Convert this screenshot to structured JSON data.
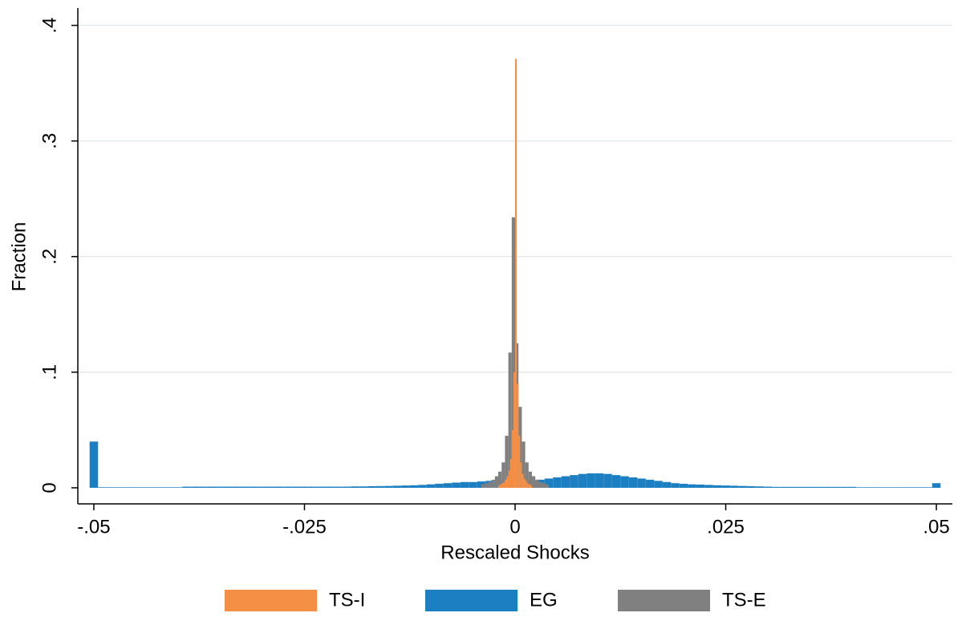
{
  "chart_data": {
    "type": "histogram",
    "xlabel": "Rescaled Shocks",
    "ylabel": "Fraction",
    "xlim": [
      -0.0519,
      0.0519
    ],
    "ylim": [
      -0.0139,
      0.415
    ],
    "xticks": [
      {
        "value": -0.05,
        "label": "-.05"
      },
      {
        "value": -0.025,
        "label": "-.025"
      },
      0,
      {
        "value": 0.025,
        "label": ".025"
      },
      {
        "value": 0.05,
        "label": ".05"
      }
    ],
    "yticks": [
      0,
      {
        "value": 0.1,
        "label": ".1"
      },
      {
        "value": 0.2,
        "label": ".2"
      },
      {
        "value": 0.3,
        "label": ".3"
      },
      {
        "value": 0.4,
        "label": ".4"
      }
    ],
    "grid": true,
    "legend": "bottom",
    "series": [
      {
        "name": "TS-I",
        "color": "#f58f45",
        "bins": [
          -0.002,
          -0.0018,
          -0.0016,
          -0.0014,
          -0.0012,
          -0.001,
          -0.0008,
          -0.0006,
          -0.0004,
          -0.0002,
          0,
          0.0002,
          0.0004,
          0.0006,
          0.0008,
          0.001,
          0.0012,
          0.0014,
          0.0016,
          0.0018,
          0.002
        ],
        "values": [
          0.002,
          0.003,
          0.004,
          0.005,
          0.007,
          0.01,
          0.015,
          0.025,
          0.05,
          0.1,
          0.371,
          0.09,
          0.045,
          0.022,
          0.012,
          0.008,
          0.006,
          0.004,
          0.003,
          0.002
        ]
      },
      {
        "name": "EG",
        "color": "#1b7fc2",
        "bins": [
          -0.0505,
          -0.0495,
          -0.0485,
          -0.0475,
          -0.0465,
          -0.0455,
          -0.0445,
          -0.0435,
          -0.0425,
          -0.0415,
          -0.0405,
          -0.0395,
          -0.0385,
          -0.0375,
          -0.0365,
          -0.0355,
          -0.0345,
          -0.0335,
          -0.0325,
          -0.0315,
          -0.0305,
          -0.0295,
          -0.0285,
          -0.0275,
          -0.0265,
          -0.0255,
          -0.0245,
          -0.0235,
          -0.0225,
          -0.0215,
          -0.0205,
          -0.0195,
          -0.0185,
          -0.0175,
          -0.0165,
          -0.0155,
          -0.0145,
          -0.0135,
          -0.0125,
          -0.0115,
          -0.0105,
          -0.0095,
          -0.0085,
          -0.0075,
          -0.0065,
          -0.0055,
          -0.0045,
          -0.0035,
          -0.0025,
          -0.0015,
          -0.0005,
          0.0005,
          0.0015,
          0.0025,
          0.0035,
          0.0045,
          0.0055,
          0.0065,
          0.0075,
          0.0085,
          0.0095,
          0.0105,
          0.0115,
          0.0125,
          0.0135,
          0.0145,
          0.0155,
          0.0165,
          0.0175,
          0.0185,
          0.0195,
          0.0205,
          0.0215,
          0.0225,
          0.0235,
          0.0245,
          0.0255,
          0.0265,
          0.0275,
          0.0285,
          0.0295,
          0.0305,
          0.0315,
          0.0325,
          0.0335,
          0.0345,
          0.0355,
          0.0365,
          0.0375,
          0.0385,
          0.0395,
          0.0405,
          0.0415,
          0.0425,
          0.0435,
          0.0445,
          0.0455,
          0.0465,
          0.0475,
          0.0485,
          0.0495,
          0.0505
        ],
        "values": [
          0.04,
          0.0005,
          0.0005,
          0.0005,
          0.0005,
          0.0005,
          0.0005,
          0.0005,
          0.0005,
          0.0005,
          0.0005,
          0.001,
          0.001,
          0.001,
          0.001,
          0.001,
          0.001,
          0.001,
          0.001,
          0.001,
          0.001,
          0.001,
          0.001,
          0.001,
          0.001,
          0.001,
          0.001,
          0.001,
          0.001,
          0.001,
          0.001,
          0.0012,
          0.0012,
          0.0014,
          0.0015,
          0.0016,
          0.0018,
          0.002,
          0.0022,
          0.0025,
          0.003,
          0.0035,
          0.004,
          0.0045,
          0.005,
          0.005,
          0.0055,
          0.006,
          0.006,
          0.005,
          0.004,
          0.005,
          0.006,
          0.007,
          0.008,
          0.009,
          0.01,
          0.011,
          0.012,
          0.0125,
          0.0125,
          0.012,
          0.011,
          0.01,
          0.009,
          0.008,
          0.007,
          0.006,
          0.005,
          0.004,
          0.0035,
          0.003,
          0.0028,
          0.0025,
          0.0022,
          0.002,
          0.0018,
          0.0016,
          0.0014,
          0.0012,
          0.001,
          0.0008,
          0.0008,
          0.0008,
          0.0008,
          0.0008,
          0.0008,
          0.0008,
          0.0008,
          0.0008,
          0.0008,
          0.0005,
          0.0005,
          0.0005,
          0.0005,
          0.0005,
          0.0005,
          0.0005,
          0.0005,
          0.0005,
          0.004
        ]
      },
      {
        "name": "TS-E",
        "color": "#808080",
        "bins": [
          -0.004,
          -0.0036,
          -0.0032,
          -0.0028,
          -0.0024,
          -0.002,
          -0.0016,
          -0.0012,
          -0.0008,
          -0.0004,
          0,
          0.0004,
          0.0008,
          0.0012,
          0.0016,
          0.002,
          0.0024,
          0.0028,
          0.0032,
          0.0036,
          0.004
        ],
        "values": [
          0.003,
          0.004,
          0.005,
          0.007,
          0.01,
          0.014,
          0.022,
          0.045,
          0.117,
          0.234,
          0.125,
          0.07,
          0.04,
          0.022,
          0.014,
          0.01,
          0.007,
          0.005,
          0.004,
          0.003
        ]
      }
    ]
  }
}
